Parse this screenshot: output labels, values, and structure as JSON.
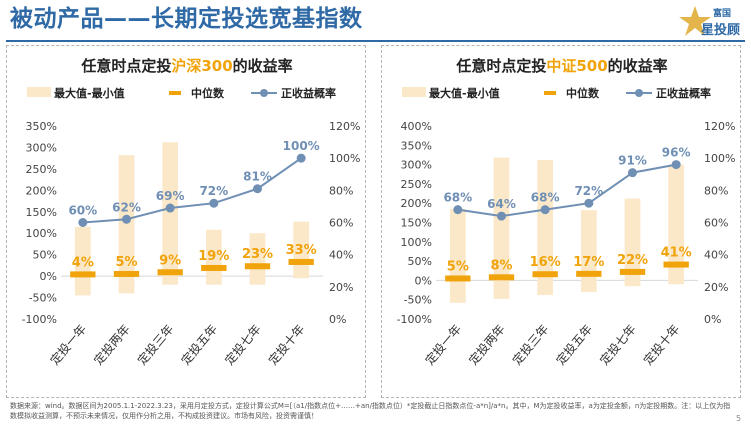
{
  "page": {
    "title": "被动产品——长期定投选宽基指数",
    "logo_text": "富国",
    "logo_text2": "星投顾",
    "footnote": "数据来源：wind。数据区间为2005.1.1-2022.3.23，采用月定投方式，定投计算公式M=[（a1/指数点位+……+an/指数点位）*定投截止日指数点位-a*n]/a*n。其中，M为定投收益率，a为定投金额，n为定投期数。注：以上仅为指数模拟收益测算，不预示未来情况，仅用作分析之用，不构成投资建议。市场有风险，投资需谨慎！",
    "page_number": "5"
  },
  "colors": {
    "title": "#2f6aa6",
    "range_bar": "#fbe8c8",
    "median": "#f0a30a",
    "median_label": "#f0a30a",
    "line": "#6f8fb4",
    "line_label": "#6f8fb4",
    "highlight": "#f0a30a",
    "axis_text": "#444444",
    "grid": "#d8d8d8"
  },
  "legend": {
    "range": "最大值-最小值",
    "median": "中位数",
    "positive_rate": "正收益概率"
  },
  "chart_data": [
    {
      "type": "bar",
      "title_prefix": "任意时点定投",
      "title_highlight": "沪深300",
      "title_suffix": "的收益率",
      "categories": [
        "定投一年",
        "定投两年",
        "定投三年",
        "定投五年",
        "定投七年",
        "定投十年"
      ],
      "range_max": [
        115,
        282,
        312,
        108,
        100,
        127
      ],
      "range_min": [
        -45,
        -40,
        -20,
        -20,
        -20,
        -5
      ],
      "median": [
        4,
        5,
        9,
        19,
        23,
        33
      ],
      "median_labels": [
        "4%",
        "5%",
        "9%",
        "19%",
        "23%",
        "33%"
      ],
      "positive_rate": [
        60,
        62,
        69,
        72,
        81,
        100
      ],
      "positive_rate_labels": [
        "60%",
        "62%",
        "69%",
        "72%",
        "81%",
        "100%"
      ],
      "y_left": {
        "min": -100,
        "max": 350,
        "ticks": [
          -100,
          -50,
          0,
          50,
          100,
          150,
          200,
          250,
          300,
          350
        ],
        "tick_labels": [
          "-100%",
          "-50%",
          "0%",
          "50%",
          "100%",
          "150%",
          "200%",
          "250%",
          "300%",
          "350%"
        ]
      },
      "y_right": {
        "min": 0,
        "max": 120,
        "ticks": [
          0,
          20,
          40,
          60,
          80,
          100,
          120
        ],
        "tick_labels": [
          "0%",
          "20%",
          "40%",
          "60%",
          "80%",
          "100%",
          "120%"
        ]
      }
    },
    {
      "type": "bar",
      "title_prefix": "任意时点定投",
      "title_highlight": "中证500",
      "title_suffix": "的收益率",
      "categories": [
        "定投一年",
        "定投两年",
        "定投三年",
        "定投五年",
        "定投七年",
        "定投十年"
      ],
      "range_max": [
        185,
        318,
        312,
        182,
        212,
        300
      ],
      "range_min": [
        -58,
        -48,
        -38,
        -30,
        -15,
        -10
      ],
      "median": [
        5,
        8,
        16,
        17,
        22,
        41
      ],
      "median_labels": [
        "5%",
        "8%",
        "16%",
        "17%",
        "22%",
        "41%"
      ],
      "positive_rate": [
        68,
        64,
        68,
        72,
        91,
        96
      ],
      "positive_rate_labels": [
        "68%",
        "64%",
        "68%",
        "72%",
        "91%",
        "96%"
      ],
      "y_left": {
        "min": -100,
        "max": 400,
        "ticks": [
          -100,
          -50,
          0,
          50,
          100,
          150,
          200,
          250,
          300,
          350,
          400
        ],
        "tick_labels": [
          "-100%",
          "-50%",
          "0%",
          "50%",
          "100%",
          "150%",
          "200%",
          "250%",
          "300%",
          "350%",
          "400%"
        ]
      },
      "y_right": {
        "min": 0,
        "max": 120,
        "ticks": [
          0,
          20,
          40,
          60,
          80,
          100,
          120
        ],
        "tick_labels": [
          "0%",
          "20%",
          "40%",
          "60%",
          "80%",
          "100%",
          "120%"
        ]
      }
    }
  ]
}
